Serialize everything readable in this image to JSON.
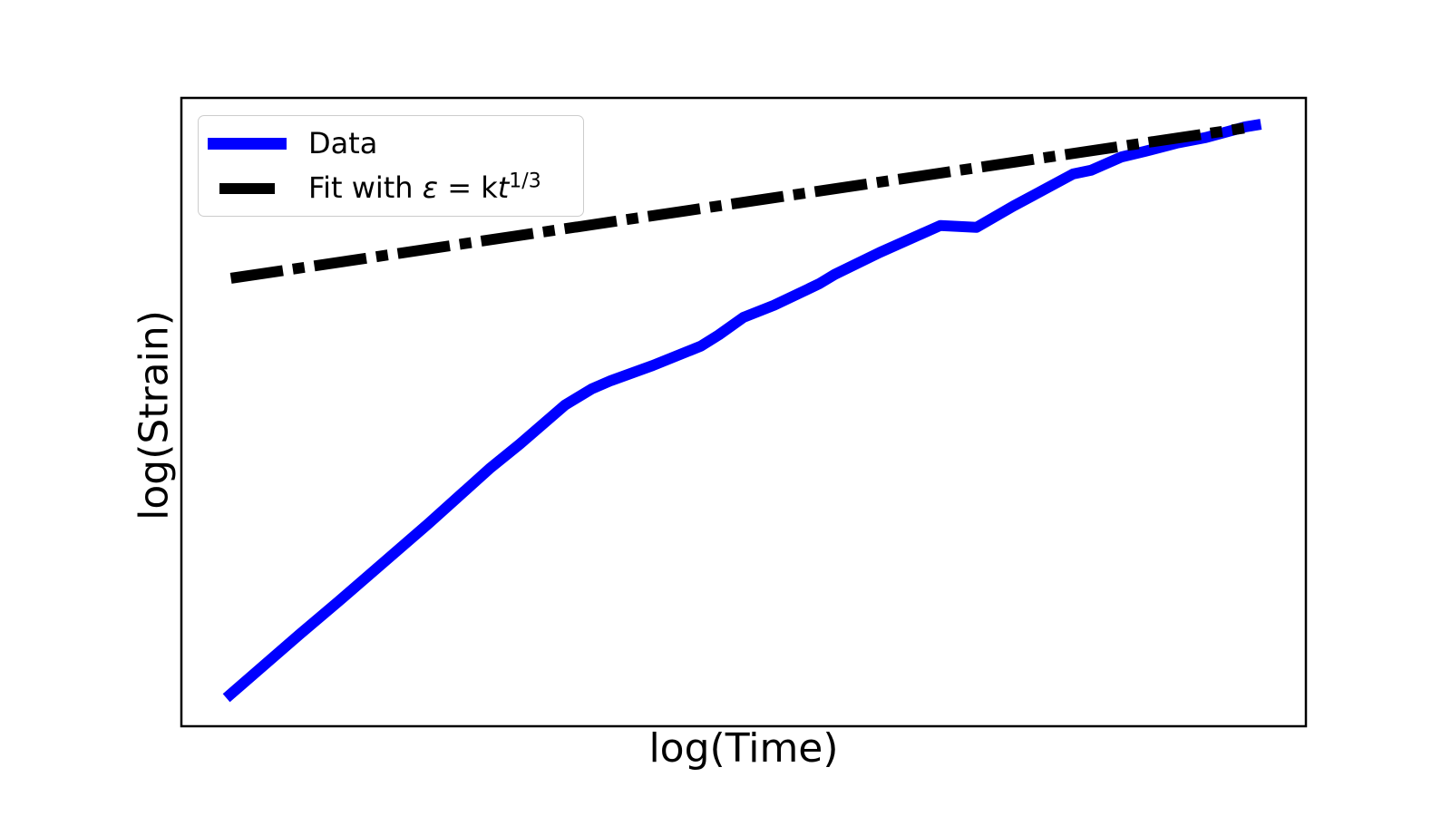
{
  "figure": {
    "xlabel": "log(Time)",
    "ylabel": "log(Strain)",
    "background_color": "#ffffff",
    "spine_color": "#000000"
  },
  "legend": {
    "position": "upper left",
    "border_color": "#cccccc",
    "items": [
      {
        "label": "Data",
        "color": "#0000ff",
        "linestyle": "solid"
      },
      {
        "label_prefix": "Fit with ",
        "label_epsilon": "ε",
        "label_mid": " = k",
        "label_t": "t",
        "label_sup": "1/3",
        "label_plain": "Fit with ε = kt^(1/3)",
        "color": "#000000",
        "linestyle": "dashdot"
      }
    ]
  },
  "chart_data": {
    "type": "line",
    "title": "",
    "xlabel": "log(Time)",
    "ylabel": "log(Strain)",
    "tick_labels_shown": false,
    "grid": false,
    "legend_position": "upper left",
    "units_note": "axes have no tick labels; x/y given as fraction of axis span (0=left/bottom, 1=right/top)",
    "xlim": [
      0,
      1
    ],
    "ylim": [
      0,
      1
    ],
    "series": [
      {
        "name": "Data",
        "color": "#0000ff",
        "linestyle": "solid",
        "linewidth": 12,
        "x": [
          0.04,
          0.105,
          0.14,
          0.22,
          0.274,
          0.301,
          0.341,
          0.365,
          0.382,
          0.419,
          0.462,
          0.478,
          0.5,
          0.527,
          0.567,
          0.581,
          0.621,
          0.675,
          0.707,
          0.74,
          0.793,
          0.809,
          0.836,
          0.857,
          0.885,
          0.911,
          0.946,
          0.96
        ],
        "y": [
          0.045,
          0.146,
          0.199,
          0.323,
          0.41,
          0.449,
          0.511,
          0.537,
          0.55,
          0.574,
          0.605,
          0.623,
          0.651,
          0.67,
          0.704,
          0.719,
          0.754,
          0.797,
          0.794,
          0.828,
          0.879,
          0.885,
          0.906,
          0.915,
          0.928,
          0.937,
          0.954,
          0.958
        ]
      },
      {
        "name": "Fit with ε = kt^(1/3)",
        "color": "#000000",
        "linestyle": "dashdot",
        "linewidth": 12,
        "x": [
          0.044,
          0.945
        ],
        "y": [
          0.713,
          0.952
        ]
      }
    ]
  }
}
